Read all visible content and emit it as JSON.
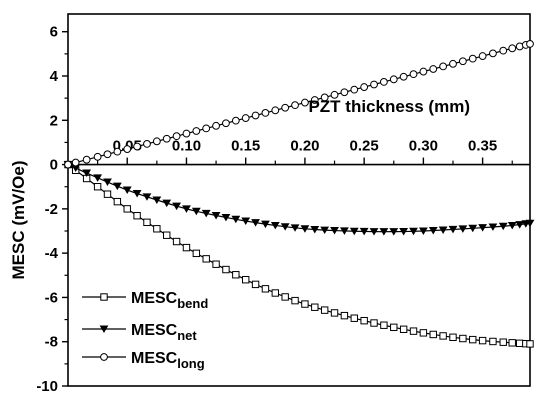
{
  "chart_data": {
    "type": "line",
    "xlabel": "PZT thickness (mm)",
    "ylabel": "MESC (mV/Oe)",
    "xlim": [
      0.0,
      0.39
    ],
    "ylim": [
      -10,
      6.8
    ],
    "x_ticks": [
      0.05,
      0.1,
      0.15,
      0.2,
      0.25,
      0.3,
      0.35
    ],
    "x_tick_labels": [
      "0.05",
      "0.10",
      "0.15",
      "0.20",
      "0.25",
      "0.30",
      "0.35"
    ],
    "y_ticks": [
      -10,
      -8,
      -6,
      -4,
      -2,
      0,
      2,
      4,
      6
    ],
    "y_tick_labels": [
      "-10",
      "-8",
      "-6",
      "-4",
      "-2",
      "0",
      "2",
      "4",
      "6"
    ],
    "x_axis_at_y": 0,
    "legend_placement": "bottom-left",
    "grid": false,
    "series": [
      {
        "key": "bend",
        "name_main": "MESC",
        "name_sub": "bend",
        "marker": "open-square",
        "x": [
          0.0,
          0.025,
          0.05,
          0.075,
          0.1,
          0.125,
          0.15,
          0.175,
          0.2,
          0.225,
          0.25,
          0.275,
          0.3,
          0.325,
          0.35,
          0.375,
          0.39
        ],
        "values": [
          0.0,
          -1.0,
          -2.0,
          -2.9,
          -3.75,
          -4.5,
          -5.2,
          -5.8,
          -6.3,
          -6.7,
          -7.05,
          -7.35,
          -7.6,
          -7.8,
          -7.95,
          -8.05,
          -8.1
        ]
      },
      {
        "key": "net",
        "name_main": "MESC",
        "name_sub": "net",
        "marker": "filled-down-triangle",
        "x": [
          0.0,
          0.025,
          0.05,
          0.075,
          0.1,
          0.125,
          0.15,
          0.175,
          0.2,
          0.225,
          0.25,
          0.275,
          0.3,
          0.325,
          0.35,
          0.375,
          0.39
        ],
        "values": [
          0.0,
          -0.6,
          -1.15,
          -1.6,
          -2.0,
          -2.3,
          -2.55,
          -2.75,
          -2.9,
          -2.98,
          -3.02,
          -3.03,
          -3.0,
          -2.93,
          -2.85,
          -2.75,
          -2.65
        ]
      },
      {
        "key": "long",
        "name_main": "MESC",
        "name_sub": "long",
        "marker": "open-circle",
        "x": [
          0.0,
          0.025,
          0.05,
          0.075,
          0.1,
          0.125,
          0.15,
          0.175,
          0.2,
          0.225,
          0.25,
          0.275,
          0.3,
          0.325,
          0.35,
          0.375,
          0.39
        ],
        "values": [
          0.0,
          0.35,
          0.7,
          1.05,
          1.4,
          1.75,
          2.1,
          2.45,
          2.8,
          3.15,
          3.5,
          3.85,
          4.2,
          4.55,
          4.9,
          5.25,
          5.45
        ]
      }
    ]
  }
}
